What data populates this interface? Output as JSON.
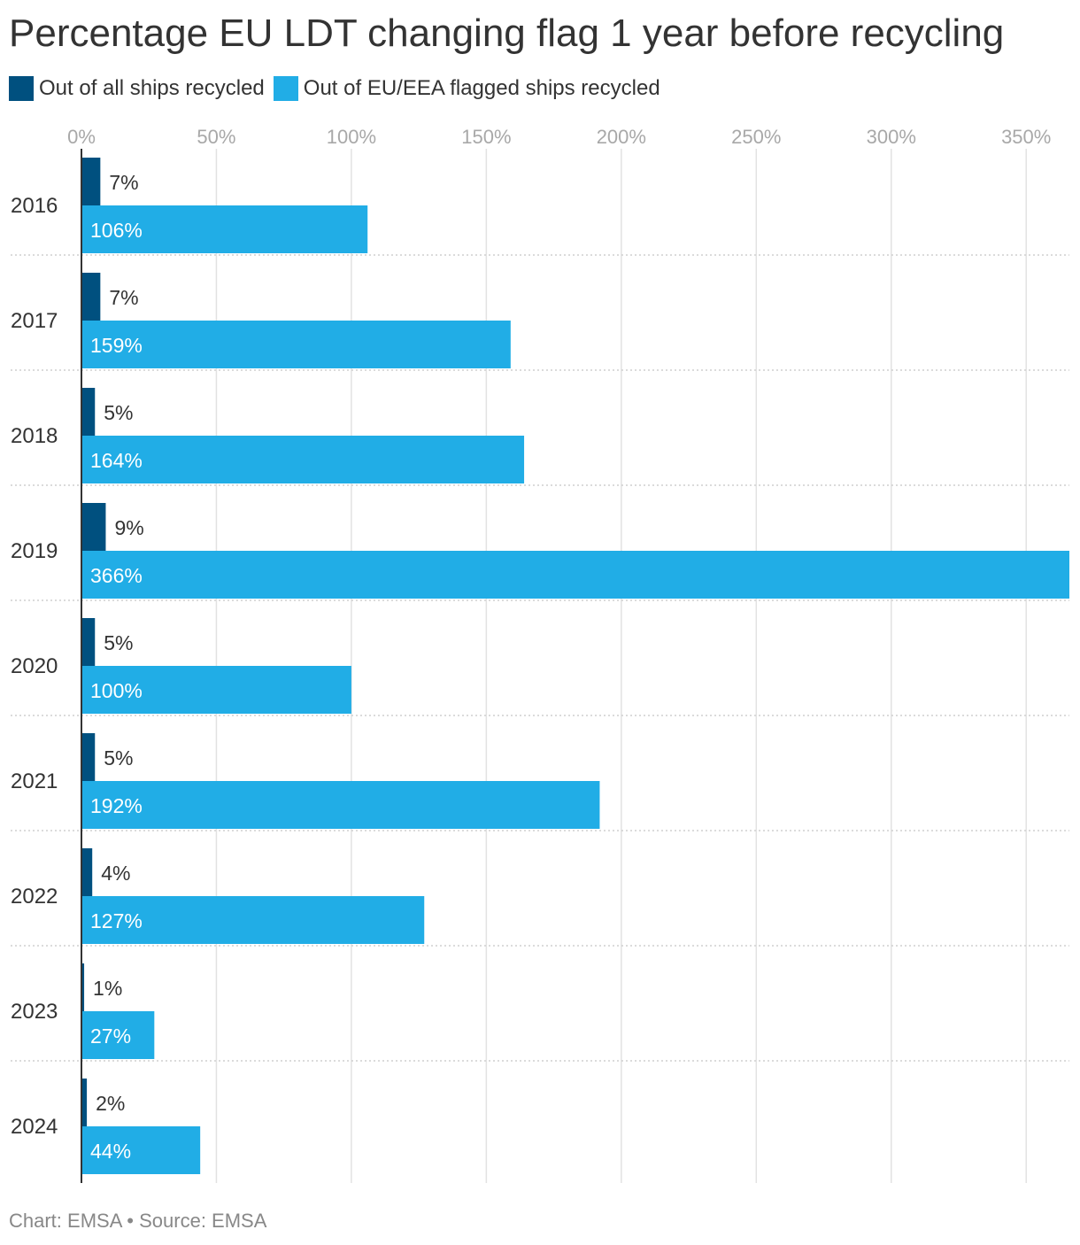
{
  "title": "Percentage EU LDT changing flag 1 year before recycling",
  "legend": [
    {
      "label": "Out of all ships recycled",
      "color": "#00507f"
    },
    {
      "label": "Out of EU/EEA flagged ships recycled",
      "color": "#21ade6"
    }
  ],
  "footer": {
    "chart": "Chart: EMSA",
    "separator": "•",
    "source": "Source: EMSA"
  },
  "chart_data": {
    "type": "bar",
    "orientation": "horizontal",
    "categories": [
      "2016",
      "2017",
      "2018",
      "2019",
      "2020",
      "2021",
      "2022",
      "2023",
      "2024"
    ],
    "series": [
      {
        "name": "Out of all ships recycled",
        "color": "#00507f",
        "values": [
          7,
          7,
          5,
          9,
          5,
          5,
          4,
          1,
          2
        ],
        "labels": [
          "7%",
          "7%",
          "5%",
          "9%",
          "5%",
          "5%",
          "4%",
          "1%",
          "2%"
        ]
      },
      {
        "name": "Out of EU/EEA flagged ships recycled",
        "color": "#21ade6",
        "values": [
          106,
          159,
          164,
          366,
          100,
          192,
          127,
          27,
          44
        ],
        "labels": [
          "106%",
          "159%",
          "164%",
          "366%",
          "100%",
          "192%",
          "127%",
          "27%",
          "44%"
        ]
      }
    ],
    "x_ticks": [
      0,
      50,
      100,
      150,
      200,
      250,
      300,
      350
    ],
    "x_tick_labels": [
      "0%",
      "50%",
      "100%",
      "150%",
      "200%",
      "250%",
      "300%",
      "350%"
    ],
    "xlim": [
      0,
      366
    ],
    "grid": true,
    "legend_position": "top-left"
  }
}
